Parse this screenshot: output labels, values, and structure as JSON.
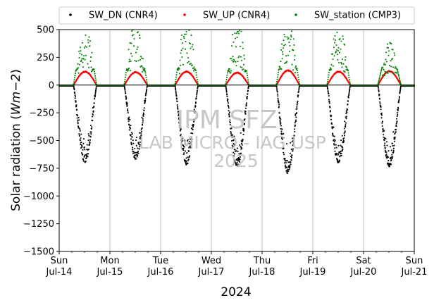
{
  "chart_data": {
    "type": "scatter",
    "xlabel": "2024",
    "ylabel_main": "Solar radiation (",
    "ylabel_unit": "Wm−2",
    "ylabel_close": ")",
    "ylim": [
      -1500,
      500
    ],
    "yticks": [
      500,
      250,
      0,
      -250,
      -500,
      -750,
      -1000,
      -1250,
      -1500
    ],
    "ytick_labels": [
      "500",
      "250",
      "0",
      "−250",
      "−500",
      "−750",
      "−1000",
      "−1250",
      "−1500"
    ],
    "xlim_days": [
      0,
      7
    ],
    "xticks": [
      {
        "day": "Sun",
        "date": "Jul-14"
      },
      {
        "day": "Mon",
        "date": "Jul-15"
      },
      {
        "day": "Tue",
        "date": "Jul-16"
      },
      {
        "day": "Wed",
        "date": "Jul-17"
      },
      {
        "day": "Thu",
        "date": "Jul-18"
      },
      {
        "day": "Fri",
        "date": "Jul-19"
      },
      {
        "day": "Sat",
        "date": "Jul-20"
      },
      {
        "day": "Sun",
        "date": "Jul-21"
      }
    ],
    "grid": "vertical",
    "zero_line": true,
    "legend_position": "top",
    "series": [
      {
        "name": "SW_DN (CNR4)",
        "color": "#000000",
        "daily_peak": [
          -700,
          -670,
          -720,
          -740,
          -800,
          -710,
          -740
        ]
      },
      {
        "name": "SW_UP (CNR4)",
        "color": "#ff0000",
        "daily_peak": [
          125,
          120,
          125,
          115,
          135,
          125,
          130
        ]
      },
      {
        "name": "SW_station (CMP3)",
        "color": "#008000",
        "daily_peak": [
          450,
          480,
          490,
          470,
          490,
          480,
          310
        ]
      }
    ],
    "watermark": {
      "line1": "IPM SFZ",
      "line2": "LAB MICRO - IAG USP",
      "line3": "2025"
    }
  }
}
